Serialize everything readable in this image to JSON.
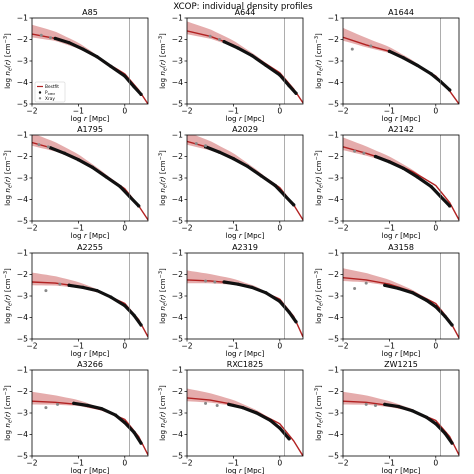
{
  "figure": {
    "suptitle": "XCOP: individual density profiles"
  },
  "colors": {
    "bestfit": "#b22222",
    "band": "#dc9090",
    "xmm_points": "#111111",
    "xray_points": "#888888",
    "vline": "#777777"
  },
  "chart_data": [
    {
      "type": "line",
      "title": "A85",
      "xlabel": "log r [Mpc]",
      "ylabel": "log n_e(r) [cm^-3]",
      "xlim": [
        -2,
        0.5
      ],
      "ylim": [
        -5,
        -1
      ],
      "xticks": [
        "-2",
        "-1",
        "0"
      ],
      "yticks": [
        "-1",
        "-2",
        "-3",
        "-4",
        "-5"
      ],
      "grid": false,
      "vline_x": 0.1,
      "legend": {
        "placement": "lower-left",
        "entries": [
          "Bestfit",
          "P_XMM",
          "Xray"
        ]
      },
      "series": [
        {
          "name": "Bestfit",
          "x": [
            -2,
            -1.5,
            -1,
            -0.5,
            0,
            0.3,
            0.5
          ],
          "y": [
            -1.75,
            -1.95,
            -2.35,
            -2.95,
            -3.6,
            -4.35,
            -5.0
          ]
        },
        {
          "name": "P_XMM",
          "x": [
            -1.5,
            -1.2,
            -0.9,
            -0.6,
            -0.3,
            0,
            0.2,
            0.35
          ],
          "y": [
            -1.95,
            -2.15,
            -2.45,
            -2.8,
            -3.25,
            -3.7,
            -4.2,
            -4.55
          ]
        },
        {
          "name": "Xray",
          "x": [
            -1.8,
            -1.6
          ],
          "y": [
            -1.8,
            -1.92
          ]
        }
      ]
    },
    {
      "type": "line",
      "title": "A644",
      "xlabel": "log r [Mpc]",
      "ylabel": "log n_e(r) [cm^-3]",
      "xlim": [
        -2,
        0.5
      ],
      "ylim": [
        -5,
        -1
      ],
      "xticks": [
        "-2",
        "-1",
        "0"
      ],
      "yticks": [
        "-1",
        "-2",
        "-3",
        "-4",
        "-5"
      ],
      "grid": false,
      "vline_x": 0.1,
      "series": [
        {
          "name": "Bestfit",
          "x": [
            -2,
            -1.5,
            -1,
            -0.5,
            0,
            0.3,
            0.5
          ],
          "y": [
            -1.6,
            -1.85,
            -2.25,
            -2.85,
            -3.55,
            -4.3,
            -4.95
          ]
        },
        {
          "name": "P_XMM",
          "x": [
            -1.2,
            -0.9,
            -0.6,
            -0.3,
            0,
            0.2,
            0.35
          ],
          "y": [
            -2.1,
            -2.4,
            -2.75,
            -3.2,
            -3.65,
            -4.15,
            -4.5
          ]
        },
        {
          "name": "Xray",
          "x": [
            -1.5,
            -1.3
          ],
          "y": [
            -1.85,
            -2.0
          ]
        }
      ]
    },
    {
      "type": "line",
      "title": "A1644",
      "xlabel": "log r [Mpc]",
      "ylabel": "log n_e(r) [cm^-3]",
      "xlim": [
        -2,
        0.5
      ],
      "ylim": [
        -5,
        -1
      ],
      "xticks": [
        "-2",
        "-1",
        "0"
      ],
      "yticks": [
        "-1",
        "-2",
        "-3",
        "-4",
        "-5"
      ],
      "grid": false,
      "vline_x": 0.1,
      "series": [
        {
          "name": "Bestfit",
          "x": [
            -2,
            -1.5,
            -1,
            -0.5,
            0,
            0.3,
            0.5
          ],
          "y": [
            -1.9,
            -2.25,
            -2.55,
            -3.05,
            -3.7,
            -4.4,
            -5.0
          ]
        },
        {
          "name": "P_XMM",
          "x": [
            -1.0,
            -0.7,
            -0.4,
            -0.1,
            0.1,
            0.3
          ],
          "y": [
            -2.55,
            -2.85,
            -3.2,
            -3.6,
            -3.95,
            -4.35
          ]
        },
        {
          "name": "Xray",
          "x": [
            -1.8,
            -1.4
          ],
          "y": [
            -2.45,
            -2.3
          ]
        }
      ]
    },
    {
      "type": "line",
      "title": "A1795",
      "xlabel": "log r [Mpc]",
      "ylabel": "log n_e(r) [cm^-3]",
      "xlim": [
        -2,
        0.5
      ],
      "ylim": [
        -5,
        -1
      ],
      "xticks": [
        "-2",
        "-1",
        "0"
      ],
      "yticks": [
        "-1",
        "-2",
        "-3",
        "-4",
        "-5"
      ],
      "grid": false,
      "vline_x": 0.1,
      "series": [
        {
          "name": "Bestfit",
          "x": [
            -2,
            -1.5,
            -1,
            -0.5,
            0,
            0.3,
            0.5
          ],
          "y": [
            -1.35,
            -1.65,
            -2.1,
            -2.75,
            -3.5,
            -4.3,
            -4.95
          ]
        },
        {
          "name": "P_XMM",
          "x": [
            -1.6,
            -1.3,
            -1.0,
            -0.7,
            -0.4,
            -0.1,
            0.1,
            0.3
          ],
          "y": [
            -1.6,
            -1.85,
            -2.15,
            -2.5,
            -2.95,
            -3.4,
            -3.85,
            -4.3
          ]
        },
        {
          "name": "Xray",
          "x": [
            -1.85,
            -1.65
          ],
          "y": [
            -1.45,
            -1.55
          ]
        }
      ]
    },
    {
      "type": "line",
      "title": "A2029",
      "xlabel": "log r [Mpc]",
      "ylabel": "log n_e(r) [cm^-3]",
      "xlim": [
        -2,
        0.5
      ],
      "ylim": [
        -5,
        -1
      ],
      "xticks": [
        "-2",
        "-1",
        "0"
      ],
      "yticks": [
        "-1",
        "-2",
        "-3",
        "-4",
        "-5"
      ],
      "grid": false,
      "vline_x": 0.1,
      "series": [
        {
          "name": "Bestfit",
          "x": [
            -2,
            -1.5,
            -1,
            -0.5,
            0,
            0.3,
            0.5
          ],
          "y": [
            -1.3,
            -1.6,
            -2.05,
            -2.7,
            -3.45,
            -4.25,
            -4.95
          ]
        },
        {
          "name": "P_XMM",
          "x": [
            -1.6,
            -1.3,
            -1.0,
            -0.7,
            -0.4,
            -0.1,
            0.1,
            0.3
          ],
          "y": [
            -1.55,
            -1.8,
            -2.1,
            -2.45,
            -2.9,
            -3.35,
            -3.8,
            -4.25
          ]
        },
        {
          "name": "Xray",
          "x": [
            -1.8,
            -1.6
          ],
          "y": [
            -1.4,
            -1.5
          ]
        }
      ]
    },
    {
      "type": "line",
      "title": "A2142",
      "xlabel": "log r [Mpc]",
      "ylabel": "log n_e(r) [cm^-3]",
      "xlim": [
        -2,
        0.5
      ],
      "ylim": [
        -5,
        -1
      ],
      "xticks": [
        "-2",
        "-1",
        "0"
      ],
      "yticks": [
        "-1",
        "-2",
        "-3",
        "-4",
        "-5"
      ],
      "grid": false,
      "vline_x": 0.1,
      "series": [
        {
          "name": "Bestfit",
          "x": [
            -2,
            -1.5,
            -1,
            -0.5,
            0,
            0.3,
            0.5
          ],
          "y": [
            -1.55,
            -1.85,
            -2.2,
            -2.7,
            -3.35,
            -4.15,
            -4.95
          ]
        },
        {
          "name": "P_XMM",
          "x": [
            -1.3,
            -1.0,
            -0.7,
            -0.4,
            -0.1,
            0.1,
            0.3
          ],
          "y": [
            -2.0,
            -2.25,
            -2.55,
            -2.95,
            -3.4,
            -3.85,
            -4.3
          ]
        },
        {
          "name": "Xray",
          "x": [
            -1.75,
            -1.55
          ],
          "y": [
            -1.75,
            -1.85
          ]
        }
      ]
    },
    {
      "type": "line",
      "title": "A2255",
      "xlabel": "log r [Mpc]",
      "ylabel": "log n_e(r) [cm^-3]",
      "xlim": [
        -2,
        0.5
      ],
      "ylim": [
        -5,
        -1
      ],
      "xticks": [
        "-2",
        "-1",
        "0"
      ],
      "yticks": [
        "-1",
        "-2",
        "-3",
        "-4",
        "-5"
      ],
      "grid": false,
      "vline_x": 0.1,
      "series": [
        {
          "name": "Bestfit",
          "x": [
            -2,
            -1.5,
            -1,
            -0.5,
            0,
            0.3,
            0.5
          ],
          "y": [
            -2.35,
            -2.4,
            -2.55,
            -2.85,
            -3.35,
            -4.1,
            -4.9
          ]
        },
        {
          "name": "P_XMM",
          "x": [
            -1.2,
            -0.9,
            -0.6,
            -0.3,
            0,
            0.2,
            0.35
          ],
          "y": [
            -2.5,
            -2.6,
            -2.75,
            -3.05,
            -3.45,
            -3.9,
            -4.35
          ]
        },
        {
          "name": "Xray",
          "x": [
            -1.7,
            -1.4
          ],
          "y": [
            -2.75,
            -2.45
          ]
        }
      ]
    },
    {
      "type": "line",
      "title": "A2319",
      "xlabel": "log r [Mpc]",
      "ylabel": "log n_e(r) [cm^-3]",
      "xlim": [
        -2,
        0.5
      ],
      "ylim": [
        -5,
        -1
      ],
      "xticks": [
        "-2",
        "-1",
        "0"
      ],
      "yticks": [
        "-1",
        "-2",
        "-3",
        "-4",
        "-5"
      ],
      "grid": false,
      "vline_x": 0.1,
      "series": [
        {
          "name": "Bestfit",
          "x": [
            -2,
            -1.5,
            -1,
            -0.5,
            0,
            0.3,
            0.5
          ],
          "y": [
            -2.25,
            -2.3,
            -2.4,
            -2.65,
            -3.15,
            -3.95,
            -4.9
          ]
        },
        {
          "name": "P_XMM",
          "x": [
            -1.2,
            -0.9,
            -0.6,
            -0.3,
            0,
            0.2,
            0.35
          ],
          "y": [
            -2.35,
            -2.45,
            -2.6,
            -2.85,
            -3.25,
            -3.75,
            -4.2
          ]
        },
        {
          "name": "Xray",
          "x": [
            -1.6,
            -1.4
          ],
          "y": [
            -2.3,
            -2.35
          ]
        }
      ]
    },
    {
      "type": "line",
      "title": "A3158",
      "xlabel": "log r [Mpc]",
      "ylabel": "log n_e(r) [cm^-3]",
      "xlim": [
        -2,
        0.5
      ],
      "ylim": [
        -5,
        -1
      ],
      "xticks": [
        "-2",
        "-1",
        "0"
      ],
      "yticks": [
        "-1",
        "-2",
        "-3",
        "-4",
        "-5"
      ],
      "grid": false,
      "vline_x": 0.1,
      "series": [
        {
          "name": "Bestfit",
          "x": [
            -2,
            -1.5,
            -1,
            -0.5,
            0,
            0.3,
            0.5
          ],
          "y": [
            -2.15,
            -2.25,
            -2.45,
            -2.8,
            -3.35,
            -4.15,
            -4.95
          ]
        },
        {
          "name": "P_XMM",
          "x": [
            -1.1,
            -0.8,
            -0.5,
            -0.2,
            0,
            0.2,
            0.35
          ],
          "y": [
            -2.5,
            -2.65,
            -2.85,
            -3.2,
            -3.5,
            -3.95,
            -4.35
          ]
        },
        {
          "name": "Xray",
          "x": [
            -1.75,
            -1.5
          ],
          "y": [
            -2.65,
            -2.4
          ]
        }
      ]
    },
    {
      "type": "line",
      "title": "A3266",
      "xlabel": "log r [Mpc]",
      "ylabel": "log n_e(r) [cm^-3]",
      "xlim": [
        -2,
        0.5
      ],
      "ylim": [
        -5,
        -1
      ],
      "xticks": [
        "-2",
        "-1",
        "0"
      ],
      "yticks": [
        "-1",
        "-2",
        "-3",
        "-4",
        "-5"
      ],
      "grid": false,
      "vline_x": 0.1,
      "series": [
        {
          "name": "Bestfit",
          "x": [
            -2,
            -1.5,
            -1,
            -0.5,
            0,
            0.3,
            0.5
          ],
          "y": [
            -2.45,
            -2.5,
            -2.6,
            -2.85,
            -3.3,
            -4.1,
            -4.95
          ]
        },
        {
          "name": "P_XMM",
          "x": [
            -1.1,
            -0.8,
            -0.5,
            -0.2,
            0,
            0.2,
            0.35
          ],
          "y": [
            -2.55,
            -2.65,
            -2.8,
            -3.1,
            -3.45,
            -3.9,
            -4.4
          ]
        },
        {
          "name": "Xray",
          "x": [
            -1.7,
            -1.45
          ],
          "y": [
            -2.75,
            -2.6
          ]
        }
      ]
    },
    {
      "type": "line",
      "title": "RXC1825",
      "xlabel": "log r [Mpc]",
      "ylabel": "log n_e(r) [cm^-3]",
      "xlim": [
        -2,
        0.5
      ],
      "ylim": [
        -5,
        -1
      ],
      "xticks": [
        "-2",
        "-1",
        "0"
      ],
      "yticks": [
        "-1",
        "-2",
        "-3",
        "-4",
        "-5"
      ],
      "grid": false,
      "vline_x": 0.1,
      "series": [
        {
          "name": "Bestfit",
          "x": [
            -2,
            -1.5,
            -1,
            -0.5,
            0,
            0.3,
            0.5
          ],
          "y": [
            -2.3,
            -2.4,
            -2.6,
            -2.95,
            -3.5,
            -4.3,
            -5.0
          ]
        },
        {
          "name": "P_XMM",
          "x": [
            -1.1,
            -0.8,
            -0.5,
            -0.2,
            0,
            0.2
          ],
          "y": [
            -2.6,
            -2.75,
            -3.0,
            -3.35,
            -3.7,
            -4.2
          ]
        },
        {
          "name": "Xray",
          "x": [
            -1.6,
            -1.35
          ],
          "y": [
            -2.55,
            -2.65
          ]
        }
      ]
    },
    {
      "type": "line",
      "title": "ZW1215",
      "xlabel": "log r [Mpc]",
      "ylabel": "log n_e(r) [cm^-3]",
      "xlim": [
        -2,
        0.5
      ],
      "ylim": [
        -5,
        -1
      ],
      "xticks": [
        "-2",
        "-1",
        "0"
      ],
      "yticks": [
        "-1",
        "-2",
        "-3",
        "-4",
        "-5"
      ],
      "grid": false,
      "vline_x": 0.1,
      "series": [
        {
          "name": "Bestfit",
          "x": [
            -2,
            -1.5,
            -1,
            -0.5,
            0,
            0.3,
            0.5
          ],
          "y": [
            -2.45,
            -2.5,
            -2.65,
            -2.9,
            -3.35,
            -4.1,
            -4.95
          ]
        },
        {
          "name": "P_XMM",
          "x": [
            -1.1,
            -0.8,
            -0.5,
            -0.2,
            0,
            0.2,
            0.35
          ],
          "y": [
            -2.6,
            -2.7,
            -2.9,
            -3.2,
            -3.5,
            -3.95,
            -4.4
          ]
        },
        {
          "name": "Xray",
          "x": [
            -1.5,
            -1.3
          ],
          "y": [
            -2.6,
            -2.65
          ]
        }
      ]
    }
  ]
}
